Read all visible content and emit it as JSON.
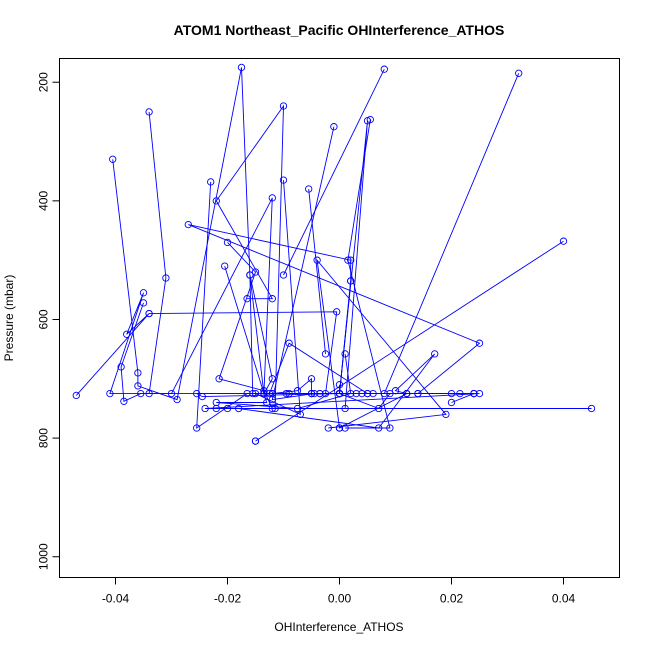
{
  "chart_data": {
    "type": "line",
    "title": "ATOM1 Northeast_Pacific OHInterference_ATHOS",
    "xlabel": "OHInterference_ATHOS",
    "ylabel": "Pressure (mbar)",
    "xlim": [
      -0.05,
      0.05
    ],
    "ylim": [
      1035,
      160
    ],
    "y_reversed": true,
    "grid": false,
    "x_ticks": [
      -0.04,
      -0.02,
      0.0,
      0.02,
      0.04
    ],
    "x_tick_labels": [
      "-0.04",
      "-0.02",
      "0.00",
      "0.02",
      "0.04"
    ],
    "y_ticks": [
      200,
      400,
      600,
      800,
      1000
    ],
    "y_tick_labels": [
      "200",
      "400",
      "600",
      "800",
      "1000"
    ],
    "colors": {
      "series": "#0000ff",
      "axis": "#000000"
    },
    "series": [
      {
        "points": [
          [
            -0.034,
            250
          ],
          [
            -0.031,
            530
          ],
          [
            -0.034,
            725
          ],
          [
            -0.0125,
            725
          ],
          [
            -0.009,
            640
          ],
          [
            0.005,
            725
          ],
          [
            0.014,
            725
          ],
          [
            0.025,
            640
          ],
          [
            -0.027,
            440
          ],
          [
            0.002,
            500
          ],
          [
            0.002,
            535
          ],
          [
            0.0,
            725
          ],
          [
            -0.041,
            725
          ],
          [
            -0.035,
            555
          ],
          [
            -0.038,
            625
          ],
          [
            -0.034,
            590
          ],
          [
            -0.047,
            728
          ]
        ]
      },
      {
        "points": [
          [
            -0.0405,
            330
          ],
          [
            -0.036,
            690
          ],
          [
            -0.036,
            712
          ],
          [
            -0.029,
            735
          ],
          [
            -0.0175,
            175
          ],
          [
            -0.016,
            525
          ],
          [
            -0.0155,
            725
          ],
          [
            -0.0135,
            725
          ],
          [
            -0.0035,
            725
          ],
          [
            0.0,
            725
          ],
          [
            0.007,
            750
          ],
          [
            0.009,
            725
          ],
          [
            0.012,
            725
          ],
          [
            0.024,
            725
          ],
          [
            0.025,
            725
          ],
          [
            -0.024,
            750
          ],
          [
            0.045,
            750
          ],
          [
            -0.022,
            750
          ],
          [
            -0.018,
            750
          ],
          [
            0.007,
            783
          ],
          [
            0.017,
            658
          ],
          [
            0.01,
            720
          ],
          [
            0.012,
            725
          ],
          [
            0.0,
            783
          ],
          [
            0.0,
            783
          ],
          [
            -0.004,
            500
          ],
          [
            0.019,
            760
          ],
          [
            -0.002,
            783
          ]
        ]
      },
      {
        "points": [
          [
            -0.035,
            572
          ],
          [
            -0.039,
            680
          ],
          [
            -0.0385,
            738
          ],
          [
            -0.0355,
            725
          ],
          [
            -0.03,
            725
          ],
          [
            -0.012,
            395
          ],
          [
            -0.0135,
            725
          ],
          [
            -0.016,
            525
          ],
          [
            -0.012,
            700
          ],
          [
            -0.0135,
            725
          ],
          [
            -0.0095,
            725
          ],
          [
            0.0,
            725
          ],
          [
            0.0,
            710
          ],
          [
            0.0,
            725
          ],
          [
            -0.0,
            725
          ],
          [
            -0.005,
            725
          ],
          [
            0.0,
            725
          ],
          [
            0.0,
            725
          ]
        ]
      },
      {
        "points": [
          [
            -0.0165,
            565
          ],
          [
            -0.012,
            565
          ],
          [
            -0.022,
            400
          ],
          [
            -0.01,
            240
          ],
          [
            -0.0115,
            750
          ],
          [
            0.001,
            750
          ],
          [
            0.005,
            265
          ],
          [
            0.0,
            725
          ],
          [
            -0.0245,
            730
          ],
          [
            -0.0255,
            725
          ],
          [
            0.0215,
            725
          ],
          [
            0.004,
            725
          ],
          [
            0.024,
            725
          ],
          [
            0.02,
            740
          ]
        ]
      },
      {
        "points": [
          [
            -0.02,
            470
          ],
          [
            -0.015,
            520
          ],
          [
            -0.0215,
            700
          ],
          [
            -0.0135,
            720
          ],
          [
            -0.012,
            750
          ],
          [
            -0.02,
            750
          ]
        ]
      },
      {
        "points": [
          [
            -0.0205,
            510
          ],
          [
            -0.013,
            740
          ],
          [
            -0.022,
            740
          ],
          [
            -0.0075,
            750
          ],
          [
            0.002,
            725
          ],
          [
            0.001,
            658
          ]
        ]
      },
      {
        "points": [
          [
            -0.023,
            368
          ],
          [
            -0.0255,
            783
          ],
          [
            -0.0165,
            725
          ],
          [
            -0.012,
            725
          ],
          [
            -0.009,
            725
          ],
          [
            -0.005,
            725
          ],
          [
            -0.005,
            700
          ],
          [
            -0.0075,
            720
          ],
          [
            -0.012,
            725
          ]
        ]
      },
      {
        "points": [
          [
            -0.001,
            275
          ],
          [
            -0.012,
            735
          ],
          [
            -0.0045,
            725
          ],
          [
            -0.0035,
            725
          ],
          [
            0.005,
            725
          ],
          [
            0.012,
            725
          ],
          [
            0.02,
            725
          ],
          [
            0.006,
            725
          ]
        ]
      },
      {
        "points": [
          [
            0.002,
            535
          ],
          [
            0.0,
            725
          ],
          [
            0.003,
            725
          ],
          [
            0.0,
            725
          ],
          [
            -0.005,
            725
          ],
          [
            0.0,
            725
          ],
          [
            0.0,
            725
          ]
        ]
      },
      {
        "points": [
          [
            0.032,
            185
          ],
          [
            0.008,
            725
          ],
          [
            0.014,
            725
          ],
          [
            0.024,
            725
          ]
        ]
      },
      {
        "points": [
          [
            0.04,
            468
          ],
          [
            -0.015,
            805
          ],
          [
            -0.015,
            805
          ]
        ]
      },
      {
        "points": [
          [
            -0.01,
            365
          ],
          [
            -0.007,
            760
          ],
          [
            -0.015,
            725
          ]
        ]
      },
      {
        "points": [
          [
            0.008,
            178
          ],
          [
            -0.01,
            525
          ]
        ]
      },
      {
        "points": [
          [
            -0.0055,
            380
          ],
          [
            -0.0025,
            658
          ]
        ]
      },
      {
        "points": [
          [
            0.0055,
            263
          ],
          [
            0.0015,
            500
          ],
          [
            0.009,
            783
          ],
          [
            0.001,
            783
          ]
        ]
      },
      {
        "points": [
          [
            -0.034,
            590
          ],
          [
            -0.0005,
            587
          ],
          [
            -0.0025,
            725
          ]
        ]
      }
    ]
  }
}
